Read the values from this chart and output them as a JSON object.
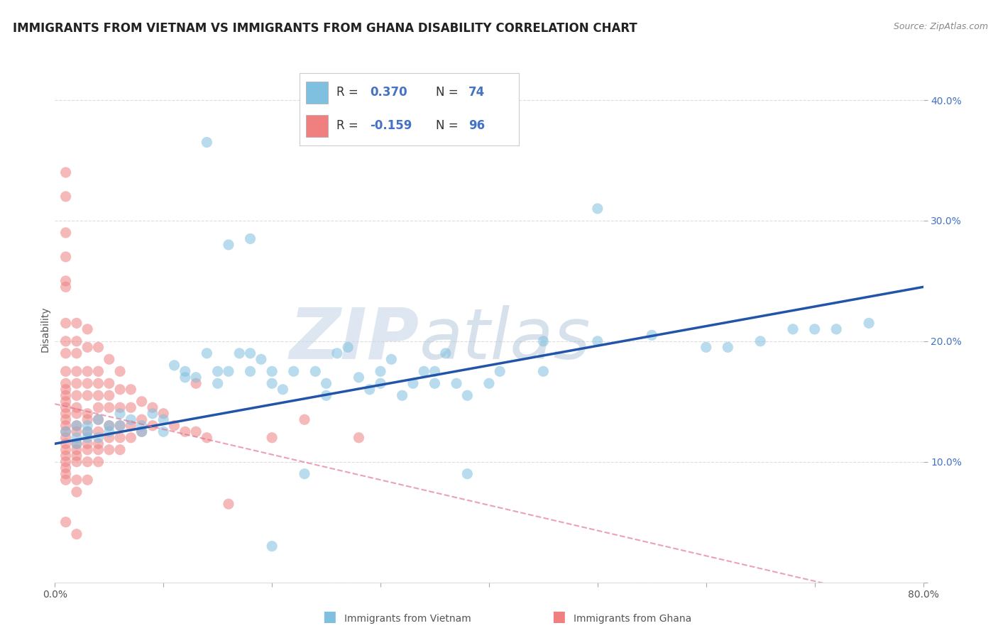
{
  "title": "IMMIGRANTS FROM VIETNAM VS IMMIGRANTS FROM GHANA DISABILITY CORRELATION CHART",
  "source": "Source: ZipAtlas.com",
  "ylabel": "Disability",
  "watermark": "ZIPatlas",
  "legend_text_color": "#4472c4",
  "xlim": [
    0.0,
    0.8
  ],
  "ylim": [
    0.0,
    0.42
  ],
  "xticks": [
    0.0,
    0.1,
    0.2,
    0.3,
    0.4,
    0.5,
    0.6,
    0.7,
    0.8
  ],
  "yticks": [
    0.0,
    0.1,
    0.2,
    0.3,
    0.4
  ],
  "ytick_labels": [
    "",
    "10.0%",
    "20.0%",
    "30.0%",
    "40.0%"
  ],
  "xtick_labels": [
    "0.0%",
    "",
    "",
    "",
    "",
    "",
    "",
    "",
    "80.0%"
  ],
  "vietnam_color": "#7fbfdf",
  "ghana_color": "#f08080",
  "vietnam_line_color": "#2255aa",
  "ghana_line_color": "#e07090",
  "vietnam_scatter": [
    [
      0.01,
      0.125
    ],
    [
      0.02,
      0.13
    ],
    [
      0.02,
      0.12
    ],
    [
      0.02,
      0.115
    ],
    [
      0.03,
      0.13
    ],
    [
      0.03,
      0.125
    ],
    [
      0.03,
      0.12
    ],
    [
      0.04,
      0.135
    ],
    [
      0.04,
      0.12
    ],
    [
      0.05,
      0.13
    ],
    [
      0.05,
      0.125
    ],
    [
      0.06,
      0.14
    ],
    [
      0.06,
      0.13
    ],
    [
      0.07,
      0.135
    ],
    [
      0.08,
      0.13
    ],
    [
      0.08,
      0.125
    ],
    [
      0.09,
      0.14
    ],
    [
      0.1,
      0.135
    ],
    [
      0.1,
      0.125
    ],
    [
      0.11,
      0.18
    ],
    [
      0.12,
      0.17
    ],
    [
      0.12,
      0.175
    ],
    [
      0.13,
      0.17
    ],
    [
      0.14,
      0.19
    ],
    [
      0.15,
      0.175
    ],
    [
      0.15,
      0.165
    ],
    [
      0.16,
      0.175
    ],
    [
      0.17,
      0.19
    ],
    [
      0.18,
      0.175
    ],
    [
      0.18,
      0.19
    ],
    [
      0.19,
      0.185
    ],
    [
      0.2,
      0.175
    ],
    [
      0.2,
      0.165
    ],
    [
      0.21,
      0.16
    ],
    [
      0.22,
      0.175
    ],
    [
      0.23,
      0.09
    ],
    [
      0.24,
      0.175
    ],
    [
      0.25,
      0.155
    ],
    [
      0.25,
      0.165
    ],
    [
      0.26,
      0.19
    ],
    [
      0.27,
      0.195
    ],
    [
      0.28,
      0.17
    ],
    [
      0.29,
      0.16
    ],
    [
      0.3,
      0.175
    ],
    [
      0.3,
      0.165
    ],
    [
      0.31,
      0.185
    ],
    [
      0.32,
      0.155
    ],
    [
      0.33,
      0.165
    ],
    [
      0.34,
      0.175
    ],
    [
      0.35,
      0.165
    ],
    [
      0.35,
      0.175
    ],
    [
      0.36,
      0.19
    ],
    [
      0.37,
      0.165
    ],
    [
      0.38,
      0.155
    ],
    [
      0.38,
      0.09
    ],
    [
      0.4,
      0.165
    ],
    [
      0.41,
      0.175
    ],
    [
      0.45,
      0.175
    ],
    [
      0.5,
      0.2
    ],
    [
      0.55,
      0.205
    ],
    [
      0.6,
      0.195
    ],
    [
      0.62,
      0.195
    ],
    [
      0.65,
      0.2
    ],
    [
      0.68,
      0.21
    ],
    [
      0.7,
      0.21
    ],
    [
      0.72,
      0.21
    ],
    [
      0.75,
      0.215
    ],
    [
      0.16,
      0.28
    ],
    [
      0.18,
      0.285
    ],
    [
      0.5,
      0.31
    ],
    [
      0.14,
      0.365
    ],
    [
      0.2,
      0.03
    ],
    [
      0.45,
      0.2
    ]
  ],
  "ghana_scatter": [
    [
      0.01,
      0.245
    ],
    [
      0.01,
      0.215
    ],
    [
      0.01,
      0.2
    ],
    [
      0.01,
      0.19
    ],
    [
      0.01,
      0.175
    ],
    [
      0.01,
      0.165
    ],
    [
      0.01,
      0.16
    ],
    [
      0.01,
      0.155
    ],
    [
      0.01,
      0.15
    ],
    [
      0.01,
      0.145
    ],
    [
      0.01,
      0.14
    ],
    [
      0.01,
      0.135
    ],
    [
      0.01,
      0.13
    ],
    [
      0.01,
      0.125
    ],
    [
      0.01,
      0.12
    ],
    [
      0.01,
      0.115
    ],
    [
      0.01,
      0.11
    ],
    [
      0.01,
      0.105
    ],
    [
      0.01,
      0.1
    ],
    [
      0.01,
      0.095
    ],
    [
      0.01,
      0.09
    ],
    [
      0.01,
      0.085
    ],
    [
      0.01,
      0.25
    ],
    [
      0.01,
      0.27
    ],
    [
      0.01,
      0.29
    ],
    [
      0.01,
      0.32
    ],
    [
      0.01,
      0.34
    ],
    [
      0.02,
      0.215
    ],
    [
      0.02,
      0.2
    ],
    [
      0.02,
      0.19
    ],
    [
      0.02,
      0.175
    ],
    [
      0.02,
      0.165
    ],
    [
      0.02,
      0.155
    ],
    [
      0.02,
      0.145
    ],
    [
      0.02,
      0.14
    ],
    [
      0.02,
      0.13
    ],
    [
      0.02,
      0.125
    ],
    [
      0.02,
      0.115
    ],
    [
      0.02,
      0.11
    ],
    [
      0.02,
      0.105
    ],
    [
      0.02,
      0.1
    ],
    [
      0.02,
      0.085
    ],
    [
      0.02,
      0.075
    ],
    [
      0.03,
      0.21
    ],
    [
      0.03,
      0.195
    ],
    [
      0.03,
      0.175
    ],
    [
      0.03,
      0.165
    ],
    [
      0.03,
      0.155
    ],
    [
      0.03,
      0.14
    ],
    [
      0.03,
      0.135
    ],
    [
      0.03,
      0.125
    ],
    [
      0.03,
      0.115
    ],
    [
      0.03,
      0.11
    ],
    [
      0.03,
      0.1
    ],
    [
      0.03,
      0.085
    ],
    [
      0.04,
      0.195
    ],
    [
      0.04,
      0.175
    ],
    [
      0.04,
      0.165
    ],
    [
      0.04,
      0.155
    ],
    [
      0.04,
      0.145
    ],
    [
      0.04,
      0.135
    ],
    [
      0.04,
      0.125
    ],
    [
      0.04,
      0.115
    ],
    [
      0.04,
      0.11
    ],
    [
      0.04,
      0.1
    ],
    [
      0.05,
      0.185
    ],
    [
      0.05,
      0.165
    ],
    [
      0.05,
      0.155
    ],
    [
      0.05,
      0.145
    ],
    [
      0.05,
      0.13
    ],
    [
      0.05,
      0.12
    ],
    [
      0.05,
      0.11
    ],
    [
      0.06,
      0.175
    ],
    [
      0.06,
      0.16
    ],
    [
      0.06,
      0.145
    ],
    [
      0.06,
      0.13
    ],
    [
      0.06,
      0.12
    ],
    [
      0.06,
      0.11
    ],
    [
      0.07,
      0.16
    ],
    [
      0.07,
      0.145
    ],
    [
      0.07,
      0.13
    ],
    [
      0.07,
      0.12
    ],
    [
      0.08,
      0.15
    ],
    [
      0.08,
      0.135
    ],
    [
      0.08,
      0.125
    ],
    [
      0.09,
      0.145
    ],
    [
      0.09,
      0.13
    ],
    [
      0.1,
      0.14
    ],
    [
      0.11,
      0.13
    ],
    [
      0.12,
      0.125
    ],
    [
      0.13,
      0.125
    ],
    [
      0.14,
      0.12
    ],
    [
      0.2,
      0.12
    ],
    [
      0.23,
      0.135
    ],
    [
      0.28,
      0.12
    ],
    [
      0.13,
      0.165
    ],
    [
      0.01,
      0.05
    ],
    [
      0.02,
      0.04
    ],
    [
      0.16,
      0.065
    ]
  ],
  "background_color": "#ffffff",
  "grid_color": "#bbbbbb",
  "grid_alpha": 0.5
}
